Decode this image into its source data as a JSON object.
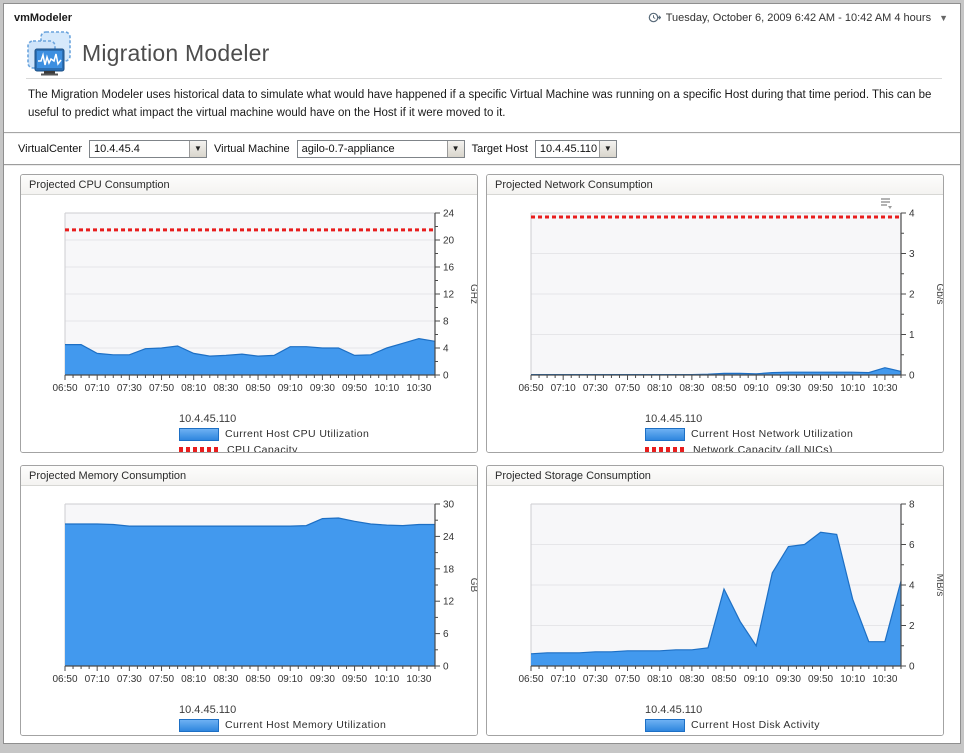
{
  "window": {
    "app_title": "vmModeler",
    "time_range": "Tuesday, October 6, 2009 6:42 AM - 10:42 AM 4 hours",
    "time_range_caret": "▼"
  },
  "header": {
    "title": "Migration Modeler",
    "description": "The Migration Modeler uses historical data to simulate what would have happened if a specific Virtual Machine was running on a specific Host during that time period. This can be useful to predict what impact the virtual machine would have on the Host if it were moved to it."
  },
  "filters": {
    "virtualcenter_label": "VirtualCenter",
    "virtualcenter_value": "10.4.45.4",
    "vm_label": "Virtual Machine",
    "vm_value": "agilo-0.7-appliance",
    "target_label": "Target Host",
    "target_value": "10.4.45.110",
    "arrow": "▼"
  },
  "colors": {
    "series_fill": "#4299ee",
    "series_edge": "#1d6fc4",
    "capacity_red": "#e81d1d",
    "plot_bg": "#f7f7f9",
    "grid_line": "#e6e6e9",
    "axis_dark": "#4a4a4a",
    "plot_border": "#cdcdd1"
  },
  "chart_data": [
    {
      "type": "area",
      "title": "Projected CPU Consumption",
      "unit": "GHz",
      "ylim": [
        0,
        24
      ],
      "y_major": 4,
      "y_minor": 2,
      "x_labels": [
        "06:50",
        "07:10",
        "07:30",
        "07:50",
        "08:10",
        "08:30",
        "08:50",
        "09:10",
        "09:30",
        "09:50",
        "10:10",
        "10:30"
      ],
      "x_step_minutes": 10,
      "x_domain_minutes": [
        0,
        230
      ],
      "host": "10.4.45.110",
      "series": [
        {
          "name": "Current Host CPU Utilization",
          "values": [
            4.5,
            4.5,
            3.2,
            3.0,
            3.0,
            3.9,
            4.0,
            4.3,
            3.2,
            2.8,
            2.9,
            3.1,
            2.8,
            2.9,
            4.2,
            4.2,
            4.0,
            4.0,
            2.9,
            3.0,
            4.0,
            4.7,
            5.4,
            5.0
          ]
        }
      ],
      "capacity": {
        "name": "CPU Capacity",
        "value": 21.5
      },
      "menu_icon": false
    },
    {
      "type": "area",
      "title": "Projected Network Consumption",
      "unit": "Gb/s",
      "ylim": [
        0,
        4
      ],
      "y_major": 1,
      "y_minor": 0.5,
      "x_labels": [
        "06:50",
        "07:10",
        "07:30",
        "07:50",
        "08:10",
        "08:30",
        "08:50",
        "09:10",
        "09:30",
        "09:50",
        "10:10",
        "10:30"
      ],
      "x_step_minutes": 10,
      "x_domain_minutes": [
        0,
        230
      ],
      "host": "10.4.45.110",
      "series": [
        {
          "name": "Current Host Network Utilization",
          "values": [
            0.01,
            0.01,
            0.01,
            0.01,
            0.01,
            0.01,
            0.01,
            0.01,
            0.01,
            0.01,
            0.01,
            0.02,
            0.04,
            0.04,
            0.03,
            0.06,
            0.07,
            0.07,
            0.07,
            0.07,
            0.07,
            0.06,
            0.18,
            0.09
          ]
        }
      ],
      "capacity": {
        "name": "Network Capacity (all NICs)",
        "value": 3.9
      },
      "menu_icon": true
    },
    {
      "type": "area",
      "title": "Projected Memory Consumption",
      "unit": "GB",
      "ylim": [
        0,
        30
      ],
      "y_major": 6,
      "y_minor": 3,
      "x_labels": [
        "06:50",
        "07:10",
        "07:30",
        "07:50",
        "08:10",
        "08:30",
        "08:50",
        "09:10",
        "09:30",
        "09:50",
        "10:10",
        "10:30"
      ],
      "x_step_minutes": 10,
      "x_domain_minutes": [
        0,
        230
      ],
      "host": "10.4.45.110",
      "series": [
        {
          "name": "Current Host Memory Utilization",
          "values": [
            26.3,
            26.3,
            26.3,
            26.2,
            25.9,
            25.9,
            25.9,
            25.9,
            25.9,
            25.9,
            25.9,
            25.9,
            25.9,
            25.9,
            25.9,
            26.0,
            27.3,
            27.4,
            26.8,
            26.3,
            26.1,
            26.0,
            26.2,
            26.2
          ]
        }
      ],
      "capacity": null,
      "menu_icon": false
    },
    {
      "type": "area",
      "title": "Projected Storage Consumption",
      "unit": "MB/s",
      "ylim": [
        0,
        8
      ],
      "y_major": 2,
      "y_minor": 1,
      "x_labels": [
        "06:50",
        "07:10",
        "07:30",
        "07:50",
        "08:10",
        "08:30",
        "08:50",
        "09:10",
        "09:30",
        "09:50",
        "10:10",
        "10:30"
      ],
      "x_step_minutes": 10,
      "x_domain_minutes": [
        0,
        230
      ],
      "host": "10.4.45.110",
      "series": [
        {
          "name": "Current Host Disk Activity",
          "values": [
            0.6,
            0.65,
            0.65,
            0.65,
            0.7,
            0.7,
            0.75,
            0.75,
            0.75,
            0.8,
            0.8,
            0.9,
            3.8,
            2.2,
            1.0,
            4.6,
            5.9,
            6.0,
            6.6,
            6.5,
            3.3,
            1.2,
            1.2,
            4.2
          ]
        }
      ],
      "capacity": null,
      "menu_icon": false
    }
  ]
}
